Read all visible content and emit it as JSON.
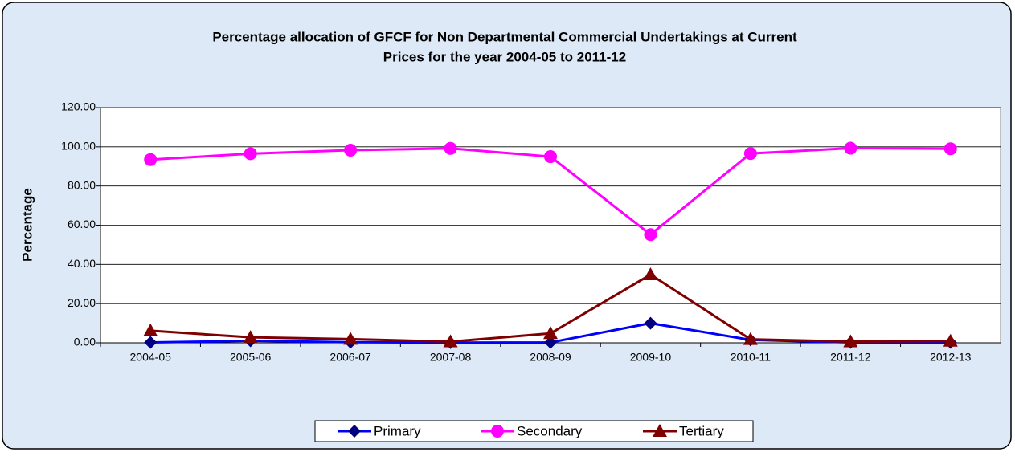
{
  "chart_data": {
    "type": "line",
    "title": [
      "Percentage allocation of GFCF for Non Departmental Commercial Undertakings at Current",
      "Prices for the year 2004-05 to 2011-12"
    ],
    "ylabel": "Percentage",
    "categories": [
      "2004-05",
      "2005-06",
      "2006-07",
      "2007-08",
      "2008-09",
      "2009-10",
      "2010-11",
      "2011-12",
      "2012-13"
    ],
    "series": [
      {
        "name": "Primary",
        "color": "#0000ff",
        "marker": "diamond",
        "marker_color": "#000080",
        "values": [
          0.2,
          1.0,
          0.3,
          0.1,
          0.2,
          10.0,
          1.5,
          0.2,
          0.2
        ]
      },
      {
        "name": "Secondary",
        "color": "#ff00ff",
        "marker": "circle",
        "marker_color": "#ff00ff",
        "values": [
          93.5,
          96.5,
          98.3,
          99.2,
          95.0,
          55.2,
          96.6,
          99.3,
          99.0
        ]
      },
      {
        "name": "Tertiary",
        "color": "#800000",
        "marker": "triangle",
        "marker_color": "#800000",
        "values": [
          6.2,
          2.8,
          1.9,
          0.6,
          4.8,
          34.8,
          1.8,
          0.6,
          0.9
        ]
      }
    ],
    "ylim": [
      0,
      120
    ],
    "yticks": [
      {
        "value": 0,
        "label": "0.00"
      },
      {
        "value": 20,
        "label": "20.00"
      },
      {
        "value": 40,
        "label": "40.00"
      },
      {
        "value": 60,
        "label": "60.00"
      },
      {
        "value": 80,
        "label": "80.00"
      },
      {
        "value": 100,
        "label": "100.00"
      },
      {
        "value": 120,
        "label": "120.00"
      }
    ],
    "grid": true,
    "legend": "bottom"
  }
}
